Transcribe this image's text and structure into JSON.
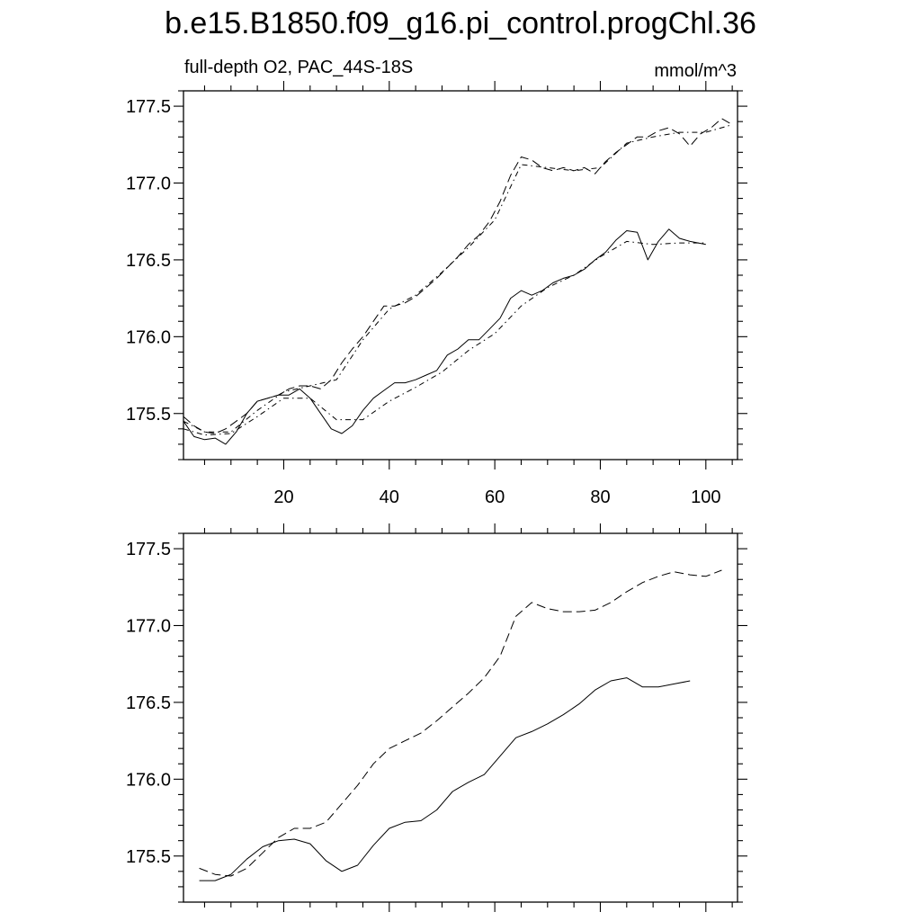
{
  "title": "b.e15.B1850.f09_g16.pi_control.progChl.36",
  "left_string": "full-depth O2, PAC_44S-18S",
  "right_string": "mmol/m^3",
  "chart_data": [
    {
      "type": "line",
      "panel": "top",
      "xlim": [
        1,
        106
      ],
      "ylim": [
        175.2,
        177.6
      ],
      "xticks": [
        20,
        40,
        60,
        80,
        100
      ],
      "xtick_labels": [
        "20",
        "40",
        "60",
        "80",
        "100"
      ],
      "yticks": [
        175.5,
        176.0,
        176.5,
        177.0,
        177.5
      ],
      "ytick_labels": [
        "175.5",
        "176.0",
        "176.5",
        "177.0",
        "177.5"
      ],
      "series": [
        {
          "style": "solid",
          "x": [
            1,
            3,
            5,
            7,
            9,
            11,
            13,
            15,
            17,
            19,
            21,
            23,
            25,
            27,
            29,
            31,
            33,
            35,
            37,
            39,
            41,
            43,
            45,
            47,
            49,
            51,
            53,
            55,
            57,
            59,
            61,
            63,
            65,
            67,
            69,
            71,
            73,
            75,
            77,
            79,
            81,
            83,
            85,
            87,
            89,
            91,
            93,
            95,
            97,
            100
          ],
          "y": [
            175.45,
            175.35,
            175.33,
            175.34,
            175.3,
            175.38,
            175.5,
            175.58,
            175.6,
            175.62,
            175.62,
            175.66,
            175.6,
            175.5,
            175.4,
            175.37,
            175.42,
            175.52,
            175.6,
            175.65,
            175.7,
            175.7,
            175.72,
            175.75,
            175.78,
            175.88,
            175.92,
            175.98,
            175.98,
            176.05,
            176.12,
            176.25,
            176.3,
            176.27,
            176.3,
            176.35,
            176.38,
            176.4,
            176.44,
            176.5,
            176.55,
            176.63,
            176.69,
            176.68,
            176.5,
            176.62,
            176.7,
            176.64,
            176.62,
            176.6
          ]
        },
        {
          "style": "dot-dash",
          "x": [
            1,
            5,
            10,
            15,
            20,
            25,
            30,
            35,
            40,
            45,
            50,
            55,
            60,
            65,
            70,
            75,
            80,
            85,
            90,
            95,
            100
          ],
          "y": [
            175.4,
            175.36,
            175.37,
            175.48,
            175.6,
            175.6,
            175.46,
            175.46,
            175.58,
            175.67,
            175.77,
            175.91,
            176.02,
            176.2,
            176.32,
            176.4,
            176.52,
            176.62,
            176.6,
            176.61,
            176.61
          ]
        },
        {
          "style": "dashed",
          "x": [
            1,
            3,
            5,
            7,
            9,
            11,
            13,
            15,
            17,
            19,
            21,
            23,
            25,
            27,
            29,
            31,
            33,
            35,
            37,
            39,
            41,
            43,
            45,
            47,
            49,
            51,
            53,
            55,
            57,
            59,
            61,
            63,
            65,
            67,
            69,
            71,
            73,
            75,
            77,
            79,
            81,
            83,
            85,
            87,
            89,
            91,
            93,
            95,
            97,
            99,
            101,
            103,
            105
          ],
          "y": [
            175.48,
            175.42,
            175.38,
            175.37,
            175.4,
            175.45,
            175.5,
            175.58,
            175.6,
            175.62,
            175.66,
            175.68,
            175.68,
            175.66,
            175.72,
            175.83,
            175.92,
            176.0,
            176.1,
            176.2,
            176.2,
            176.22,
            176.26,
            176.32,
            176.38,
            176.45,
            176.52,
            176.6,
            176.66,
            176.75,
            176.88,
            177.05,
            177.17,
            177.15,
            177.1,
            177.08,
            177.1,
            177.08,
            177.1,
            177.06,
            177.14,
            177.2,
            177.25,
            177.3,
            177.3,
            177.34,
            177.36,
            177.32,
            177.24,
            177.32,
            177.36,
            177.42,
            177.38
          ]
        },
        {
          "style": "dot-dash",
          "x": [
            1,
            5,
            10,
            15,
            20,
            25,
            30,
            35,
            40,
            45,
            50,
            55,
            60,
            65,
            70,
            75,
            80,
            85,
            90,
            95,
            100,
            105
          ],
          "y": [
            175.45,
            175.38,
            175.38,
            175.52,
            175.64,
            175.68,
            175.72,
            175.98,
            176.18,
            176.27,
            176.42,
            176.58,
            176.76,
            177.12,
            177.1,
            177.08,
            177.1,
            177.26,
            177.3,
            177.33,
            177.33,
            177.38
          ]
        }
      ]
    },
    {
      "type": "line",
      "panel": "bottom",
      "xlim": [
        1,
        106
      ],
      "ylim": [
        175.2,
        177.6
      ],
      "xticks": [
        20,
        40,
        60,
        80,
        100
      ],
      "yticks": [
        175.5,
        176.0,
        176.5,
        177.0,
        177.5
      ],
      "ytick_labels": [
        "175.5",
        "176.0",
        "176.5",
        "177.0",
        "177.5"
      ],
      "series": [
        {
          "style": "solid",
          "x": [
            4,
            7,
            10,
            13,
            16,
            19,
            22,
            25,
            28,
            31,
            34,
            37,
            40,
            43,
            46,
            49,
            52,
            55,
            58,
            61,
            64,
            67,
            70,
            73,
            76,
            79,
            82,
            85,
            88,
            91,
            94,
            97
          ],
          "y": [
            175.34,
            175.34,
            175.38,
            175.48,
            175.56,
            175.6,
            175.61,
            175.58,
            175.47,
            175.4,
            175.44,
            175.57,
            175.68,
            175.72,
            175.73,
            175.8,
            175.92,
            175.98,
            176.03,
            176.15,
            176.27,
            176.31,
            176.36,
            176.42,
            176.49,
            176.58,
            176.64,
            176.66,
            176.6,
            176.6,
            176.62,
            176.64
          ]
        },
        {
          "style": "dashed",
          "x": [
            4,
            7,
            10,
            13,
            16,
            19,
            22,
            25,
            28,
            31,
            34,
            37,
            40,
            43,
            46,
            49,
            52,
            55,
            58,
            61,
            64,
            67,
            70,
            73,
            76,
            79,
            82,
            85,
            88,
            91,
            94,
            97,
            100,
            103
          ],
          "y": [
            175.42,
            175.38,
            175.37,
            175.42,
            175.52,
            175.62,
            175.68,
            175.68,
            175.72,
            175.84,
            175.96,
            176.1,
            176.2,
            176.25,
            176.3,
            176.38,
            176.47,
            176.56,
            176.66,
            176.8,
            177.06,
            177.15,
            177.11,
            177.09,
            177.09,
            177.1,
            177.15,
            177.22,
            177.28,
            177.32,
            177.35,
            177.33,
            177.32,
            177.36
          ]
        }
      ]
    }
  ]
}
